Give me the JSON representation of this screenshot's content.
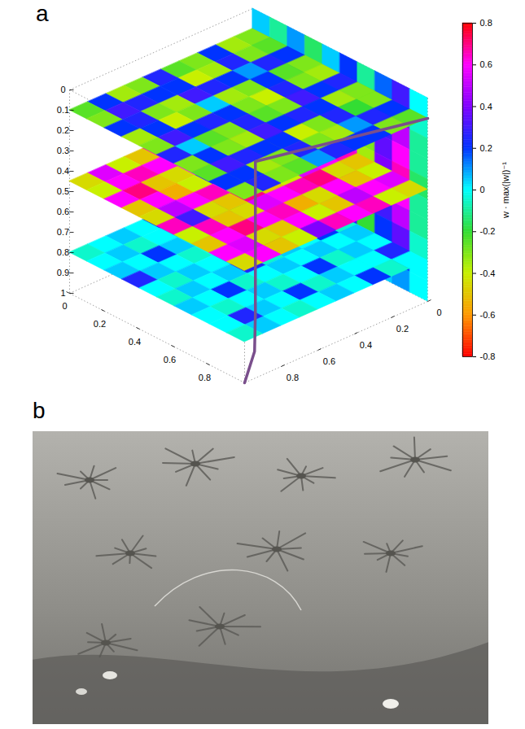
{
  "chart_data": [
    {
      "type": "slices3d",
      "panel": "a",
      "xlim": [
        0,
        1
      ],
      "xticks": [
        0,
        0.2,
        0.4,
        0.6,
        0.8
      ],
      "ylim": [
        0,
        1
      ],
      "yticks": [
        0,
        0.2,
        0.4,
        0.6,
        0.8
      ],
      "zlim": [
        0,
        1
      ],
      "zticks": [
        0,
        0.1,
        0.2,
        0.3,
        0.4,
        0.5,
        0.6,
        0.7,
        0.8,
        0.9,
        1
      ],
      "colormap": [
        "#ff0000",
        "#ff9900",
        "#c8f000",
        "#33dd33",
        "#00ffff",
        "#0033ff",
        "#8000ff",
        "#ff00ff",
        "#ff0000"
      ],
      "colorbar": {
        "label": "w · max(|w|)⁻¹",
        "lim": [
          -0.8,
          0.8
        ],
        "ticks": [
          -0.8,
          -0.6,
          -0.4,
          -0.2,
          0,
          0.2,
          0.4,
          0.6,
          0.8
        ]
      },
      "vertical_slice": {
        "y": 0,
        "values": [
          [
            0.05,
            -0.1,
            0.1,
            -0.15,
            0.05,
            0.2,
            -0.1,
            0.15,
            0.3,
            0
          ],
          [
            0.1,
            -0.2,
            0.2,
            -0.25,
            0.1,
            0.3,
            -0.2,
            0.25,
            0.4,
            -0.05
          ],
          [
            0.1,
            -0.25,
            0.25,
            -0.3,
            0.1,
            0.4,
            -0.25,
            0.3,
            0.5,
            -0.1
          ],
          [
            0.15,
            -0.3,
            0.3,
            -0.35,
            0.15,
            0.5,
            -0.3,
            0.35,
            0.6,
            -0.1
          ],
          [
            0.15,
            -0.3,
            0.3,
            -0.4,
            0.15,
            0.55,
            -0.35,
            0.4,
            0.65,
            -0.15
          ],
          [
            0.1,
            -0.3,
            0.25,
            -0.35,
            0.1,
            0.5,
            -0.3,
            0.35,
            0.6,
            -0.1
          ],
          [
            0.1,
            -0.25,
            0.2,
            -0.3,
            0.1,
            0.4,
            -0.25,
            0.3,
            0.5,
            -0.1
          ],
          [
            0.05,
            -0.2,
            0.15,
            -0.2,
            0.05,
            0.3,
            -0.2,
            0.2,
            0.35,
            -0.05
          ],
          [
            0.05,
            -0.1,
            0.1,
            -0.1,
            0.05,
            0.2,
            -0.1,
            0.1,
            0.2,
            0
          ],
          [
            0,
            -0.05,
            0.05,
            -0.05,
            0,
            0.1,
            -0.05,
            0.05,
            0.1,
            0
          ]
        ]
      },
      "slices": [
        {
          "z": 0.8,
          "values": [
            [
              0,
              0.05,
              -0.05,
              0.2,
              0,
              -0.05,
              0.05,
              0,
              0.25,
              0
            ],
            [
              -0.05,
              0,
              0.05,
              0,
              -0.05,
              0.2,
              0,
              0.05,
              0,
              -0.05
            ],
            [
              0.05,
              0.2,
              0,
              -0.05,
              0.05,
              0,
              0.05,
              -0.05,
              0,
              0.2
            ],
            [
              0,
              -0.05,
              0.05,
              0,
              0.25,
              0.05,
              0,
              0.2,
              0.05,
              0
            ],
            [
              -0.05,
              0,
              0,
              0.05,
              0,
              -0.05,
              0.05,
              0,
              -0.05,
              0.05
            ],
            [
              0.2,
              0.05,
              -0.05,
              0,
              0.05,
              0.25,
              0,
              -0.05,
              0.2,
              0
            ],
            [
              0,
              0,
              0.05,
              -0.05,
              0,
              0.05,
              -0.05,
              0.05,
              0,
              -0.05
            ],
            [
              0.05,
              -0.05,
              0.2,
              0,
              0.05,
              0,
              0.2,
              0,
              0.05,
              0
            ],
            [
              0,
              0.05,
              0,
              0.05,
              -0.05,
              0.05,
              0,
              -0.05,
              0.25,
              0.05
            ],
            [
              -0.05,
              0,
              0.05,
              0.25,
              0,
              -0.05,
              0.05,
              0,
              0,
              -0.05
            ]
          ]
        },
        {
          "z": 0.45,
          "values": [
            [
              -0.45,
              -0.5,
              0.6,
              -0.4,
              -0.45,
              0.65,
              -0.5,
              -0.4,
              0.55,
              -0.45
            ],
            [
              -0.5,
              -0.4,
              0.65,
              -0.45,
              -0.5,
              0.6,
              -0.45,
              -0.5,
              0.6,
              -0.4
            ],
            [
              0.6,
              0.7,
              0.5,
              0.6,
              0.65,
              0.55,
              0.7,
              0.6,
              0.5,
              0.65
            ],
            [
              -0.4,
              -0.5,
              0.6,
              -0.45,
              -0.55,
              -0.4,
              0.65,
              -0.45,
              -0.5,
              0.6
            ],
            [
              -0.45,
              -0.55,
              0.7,
              -0.5,
              -0.45,
              -0.5,
              0.6,
              -0.55,
              -0.4,
              0.65
            ],
            [
              0.65,
              0.55,
              0.6,
              0.3,
              0.6,
              0.7,
              0.55,
              0.65,
              0.6,
              0.4
            ],
            [
              -0.5,
              0.6,
              -0.45,
              -0.4,
              0.65,
              -0.5,
              -0.45,
              0.6,
              -0.5,
              -0.4
            ],
            [
              -0.4,
              0.65,
              -0.5,
              -0.55,
              0.6,
              -0.45,
              -0.5,
              0.7,
              -0.45,
              -0.5
            ],
            [
              0.55,
              0.6,
              0.7,
              0.6,
              0.5,
              0.3,
              0.65,
              0.6,
              0.55,
              0.6
            ],
            [
              -0.45,
              -0.4,
              0.6,
              -0.5,
              -0.45,
              0.65,
              -0.4,
              -0.5,
              0.6,
              -0.45
            ]
          ]
        },
        {
          "z": 0.1,
          "values": [
            [
              -0.3,
              -0.25,
              0.2,
              -0.3,
              -0.35,
              0.25,
              -0.3,
              -0.3,
              0.2,
              -0.25
            ],
            [
              -0.35,
              -0.3,
              0.25,
              -0.25,
              -0.3,
              0.2,
              -0.35,
              -0.2,
              0.25,
              -0.3
            ],
            [
              0.2,
              0.25,
              0.1,
              0.2,
              0.25,
              0.3,
              0.2,
              0.25,
              0.1,
              0.2
            ],
            [
              -0.3,
              -0.35,
              0.2,
              -0.3,
              -0.4,
              -0.3,
              0.25,
              -0.3,
              -0.35,
              0.2
            ],
            [
              -0.25,
              -0.4,
              0.25,
              -0.35,
              -0.3,
              -0.25,
              0.2,
              -0.4,
              -0.3,
              0.25
            ],
            [
              0.25,
              0.2,
              0.3,
              0.05,
              0.2,
              0.25,
              0.3,
              0.2,
              0.25,
              0.1
            ],
            [
              -0.3,
              0.2,
              -0.35,
              -0.3,
              0.25,
              -0.3,
              -0.35,
              0.2,
              -0.3,
              -0.25
            ],
            [
              -0.35,
              0.25,
              -0.3,
              -0.4,
              0.2,
              -0.25,
              -0.3,
              0.25,
              -0.35,
              -0.3
            ],
            [
              0.2,
              0.3,
              0.25,
              0.2,
              0.3,
              0.05,
              0.2,
              0.3,
              0.2,
              0.25
            ],
            [
              -0.25,
              -0.3,
              0.2,
              -0.35,
              -0.3,
              0.25,
              -0.3,
              -0.25,
              0.2,
              -0.3
            ]
          ]
        }
      ],
      "line": {
        "color": "#7a4f8c",
        "points": [
          [
            1,
            0,
            0.1
          ],
          [
            0.8,
            0.75,
            0.1
          ],
          [
            0.8,
            0.75,
            0.85
          ],
          [
            0.9,
            0.85,
            0.95
          ],
          [
            1,
            1,
            1
          ]
        ]
      }
    },
    {
      "type": "image",
      "panel": "b"
    }
  ]
}
